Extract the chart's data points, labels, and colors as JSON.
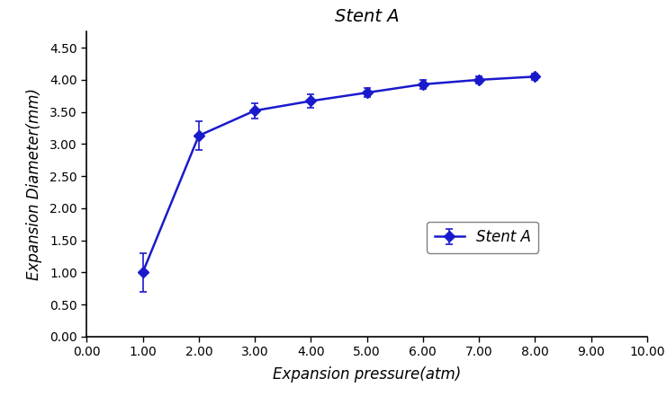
{
  "title": "Stent A",
  "xlabel": "Expansion pressure(atm)",
  "ylabel": "Expansion Diameter(mm)",
  "legend_label": "Stent A",
  "x": [
    1.0,
    2.0,
    3.0,
    4.0,
    5.0,
    6.0,
    7.0,
    8.0
  ],
  "y": [
    1.0,
    3.13,
    3.52,
    3.67,
    3.8,
    3.93,
    4.0,
    4.05
  ],
  "yerr": [
    0.3,
    0.22,
    0.12,
    0.1,
    0.07,
    0.07,
    0.06,
    0.05
  ],
  "xlim": [
    0.0,
    10.0
  ],
  "ylim": [
    0.0,
    4.75
  ],
  "xticks": [
    0.0,
    1.0,
    2.0,
    3.0,
    4.0,
    5.0,
    6.0,
    7.0,
    8.0,
    9.0,
    10.0
  ],
  "yticks": [
    0.0,
    0.5,
    1.0,
    1.5,
    2.0,
    2.5,
    3.0,
    3.5,
    4.0,
    4.5
  ],
  "line_color": "#1a1acd",
  "marker": "D",
  "marker_size": 6,
  "line_width": 1.8,
  "title_fontsize": 14,
  "label_fontsize": 12,
  "tick_fontsize": 10,
  "legend_fontsize": 12,
  "background_color": "#ffffff"
}
